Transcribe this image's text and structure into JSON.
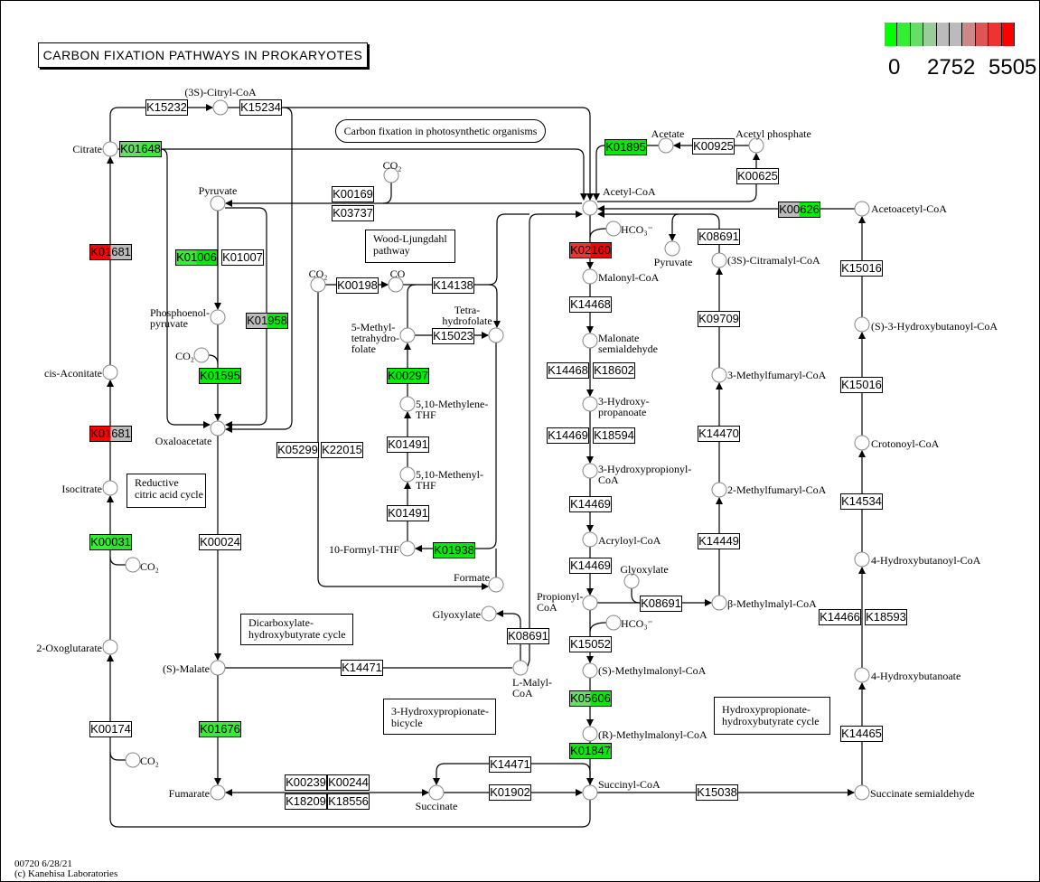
{
  "title": "CARBON FIXATION PATHWAYS IN PROKARYOTES",
  "legend": {
    "min_label": "0",
    "mid_label": "2752",
    "max_label": "5505",
    "colors": [
      "#00ff00",
      "#33ee33",
      "#66dd66",
      "#99cc99",
      "#bbbbbb",
      "#bbbbbb",
      "#cc8888",
      "#dd5555",
      "#ee3333",
      "#ff0000"
    ]
  },
  "notes": [
    "Carbon fixation in photosynthetic organisms",
    "Wood-Ljungdahl\npathway",
    "Reductive\ncitric acid cycle",
    "Dicarboxylate-\nhydroxybutyrate cycle",
    "3-Hydroxypropionate-\nbicycle",
    "Hydroxypropionate-\nhydroxybutyrate cycle"
  ],
  "footer": {
    "line1": "00720 6/28/21",
    "line2": "(c) Kanehisa Laboratories"
  },
  "enzymes": [
    {
      "label": "K15232",
      "fill": [
        "#ffffff"
      ]
    },
    {
      "label": "K15234",
      "fill": [
        "#ffffff"
      ]
    },
    {
      "label": "K01648",
      "fill": [
        "#66dd66",
        "#33ee33"
      ]
    },
    {
      "label": "K00169",
      "fill": [
        "#ffffff"
      ]
    },
    {
      "label": "K03737",
      "fill": [
        "#ffffff"
      ]
    },
    {
      "label": "K01895",
      "fill": [
        "#00ee00"
      ]
    },
    {
      "label": "K00925",
      "fill": [
        "#ffffff"
      ]
    },
    {
      "label": "K00625",
      "fill": [
        "#ffffff"
      ]
    },
    {
      "label": "K00626",
      "fill": [
        "#bbbbbb",
        "#00ee00"
      ]
    },
    {
      "label": "K02160",
      "fill": [
        "#ee3333",
        "#ff0000"
      ]
    },
    {
      "label": "K08691",
      "fill": [
        "#ffffff"
      ]
    },
    {
      "label": "K01681",
      "fill": [
        "#ff0000",
        "#bbbbbb"
      ]
    },
    {
      "label": "K01006",
      "fill": [
        "#33ee33",
        "#00ee00"
      ]
    },
    {
      "label": "K01007",
      "fill": [
        "#ffffff"
      ]
    },
    {
      "label": "K00198",
      "fill": [
        "#ffffff"
      ]
    },
    {
      "label": "K14138",
      "fill": [
        "#ffffff"
      ]
    },
    {
      "label": "K01958",
      "fill": [
        "#bbbbbb",
        "#00ee00"
      ]
    },
    {
      "label": "K15023",
      "fill": [
        "#ffffff"
      ]
    },
    {
      "label": "K14468",
      "fill": [
        "#ffffff"
      ]
    },
    {
      "label": "K09709",
      "fill": [
        "#ffffff"
      ]
    },
    {
      "label": "K15016",
      "fill": [
        "#ffffff"
      ]
    },
    {
      "label": "K01595",
      "fill": [
        "#00ee00"
      ]
    },
    {
      "label": "K00297",
      "fill": [
        "#00ee00"
      ]
    },
    {
      "label": "K14468",
      "fill": [
        "#ffffff"
      ]
    },
    {
      "label": "K18602",
      "fill": [
        "#ffffff"
      ]
    },
    {
      "label": "K15016",
      "fill": [
        "#ffffff"
      ]
    },
    {
      "label": "K01681",
      "fill": [
        "#ff0000",
        "#bbbbbb"
      ]
    },
    {
      "label": "K05299",
      "fill": [
        "#ffffff"
      ]
    },
    {
      "label": "K22015",
      "fill": [
        "#ffffff"
      ]
    },
    {
      "label": "K01491",
      "fill": [
        "#ffffff"
      ]
    },
    {
      "label": "K14469",
      "fill": [
        "#ffffff"
      ]
    },
    {
      "label": "K18594",
      "fill": [
        "#ffffff"
      ]
    },
    {
      "label": "K14470",
      "fill": [
        "#ffffff"
      ]
    },
    {
      "label": "K14469",
      "fill": [
        "#ffffff"
      ]
    },
    {
      "label": "K14534",
      "fill": [
        "#ffffff"
      ]
    },
    {
      "label": "K01491",
      "fill": [
        "#ffffff"
      ]
    },
    {
      "label": "K00031",
      "fill": [
        "#33ee33",
        "#33dd33"
      ]
    },
    {
      "label": "K00024",
      "fill": [
        "#ffffff"
      ]
    },
    {
      "label": "K01938",
      "fill": [
        "#00ee00"
      ]
    },
    {
      "label": "K14469",
      "fill": [
        "#ffffff"
      ]
    },
    {
      "label": "K14449",
      "fill": [
        "#ffffff"
      ]
    },
    {
      "label": "K08691",
      "fill": [
        "#ffffff"
      ]
    },
    {
      "label": "K14466",
      "fill": [
        "#ffffff"
      ]
    },
    {
      "label": "K18593",
      "fill": [
        "#ffffff"
      ]
    },
    {
      "label": "K08691",
      "fill": [
        "#ffffff"
      ]
    },
    {
      "label": "K15052",
      "fill": [
        "#ffffff"
      ]
    },
    {
      "label": "K14471",
      "fill": [
        "#ffffff"
      ]
    },
    {
      "label": "K05606",
      "fill": [
        "#66dd66",
        "#00ee00"
      ]
    },
    {
      "label": "K00174",
      "fill": [
        "#ffffff"
      ]
    },
    {
      "label": "K01676",
      "fill": [
        "#33ee33"
      ]
    },
    {
      "label": "K14465",
      "fill": [
        "#ffffff"
      ]
    },
    {
      "label": "K01847",
      "fill": [
        "#00ee00"
      ]
    },
    {
      "label": "K14471",
      "fill": [
        "#ffffff"
      ]
    },
    {
      "label": "K00239",
      "fill": [
        "#ffffff"
      ]
    },
    {
      "label": "K00244",
      "fill": [
        "#ffffff"
      ]
    },
    {
      "label": "K18209",
      "fill": [
        "#ffffff"
      ]
    },
    {
      "label": "K18556",
      "fill": [
        "#ffffff"
      ]
    },
    {
      "label": "K01902",
      "fill": [
        "#ffffff"
      ]
    },
    {
      "label": "K15038",
      "fill": [
        "#ffffff"
      ]
    }
  ],
  "compounds": [
    "(3S)-Citryl-CoA",
    "Citrate",
    "Pyruvate",
    "Acetyl-CoA",
    "Acetate",
    "Acetyl phosphate",
    "Acetoacetyl-CoA",
    "CO₂",
    "Pyruvate",
    "(3S)-Citramalyl-CoA",
    "HCO₃⁻",
    "Malonyl-CoA",
    "Phosphoenol-\npyruvate",
    "CO₂",
    "CO",
    "5-Methyl-\ntetrahydro-\nfolate",
    "Tetra-\nhydrofolate",
    "Malonate\nsemialdehyde",
    "(S)-3-Hydroxybutanoyl-CoA",
    "CO₂",
    "cis-Aconitate",
    "3-Methylfumaryl-CoA",
    "5,10-Methylene-\nTHF",
    "3-Hydroxy-\npropanoate",
    "Oxaloacetate",
    "Crotonoyl-CoA",
    "5,10-Methenyl-\nTHF",
    "3-Hydroxypropionyl-\nCoA",
    "Isocitrate",
    "2-Methylfumaryl-CoA",
    "Acryloyl-CoA",
    "10-Formyl-THF",
    "CO₂",
    "4-Hydroxybutanoyl-CoA",
    "Formate",
    "Glyoxylate",
    "Propionyl-\nCoA",
    "β-Methylmalyl-CoA",
    "Glyoxylate",
    "HCO₃⁻",
    "2-Oxoglutarate",
    "(S)-Malate",
    "L-Malyl-\nCoA",
    "(S)-Methylmalonyl-CoA",
    "4-Hydroxybutanoate",
    "(R)-Methylmalonyl-CoA",
    "CO₂",
    "Fumarate",
    "Succinate",
    "Succinyl-CoA",
    "Succinate semialdehyde"
  ]
}
